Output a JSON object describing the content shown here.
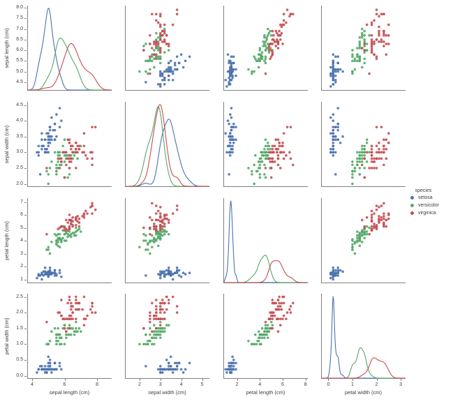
{
  "chart_data": {
    "type": "scatter",
    "subtype": "pairplot_scatter_matrix",
    "title": "",
    "diagonal": "kde",
    "grid": false,
    "variables": [
      "sepal length (cm)",
      "sepal width (cm)",
      "petal length (cm)",
      "petal width (cm)"
    ],
    "legend": {
      "title": "species",
      "position": "right-center"
    },
    "axes": {
      "xlims": [
        [
          3.7,
          8.9
        ],
        [
          1.3,
          5.35
        ],
        [
          0.8,
          8.2
        ],
        [
          -0.3,
          3.2
        ]
      ],
      "ylims": [
        [
          4.1,
          8.1
        ],
        [
          1.9,
          4.6
        ],
        [
          0.7,
          7.3
        ],
        [
          -0.1,
          2.6
        ]
      ],
      "xticks": [
        [
          4,
          6,
          8
        ],
        [
          2,
          3,
          4,
          5
        ],
        [
          2,
          4,
          6,
          8
        ],
        [
          0,
          1,
          2,
          3
        ]
      ],
      "xticklabels": [
        [
          "4",
          "6",
          "8"
        ],
        [
          "2",
          "3",
          "4",
          "5"
        ],
        [
          "2",
          "4",
          "6",
          "8"
        ],
        [
          "0",
          "1",
          "2",
          "3"
        ]
      ],
      "yticks": [
        [
          4.5,
          5.0,
          5.5,
          6.0,
          6.5,
          7.0,
          7.5,
          8.0
        ],
        [
          2.0,
          2.5,
          3.0,
          3.5,
          4.0,
          4.5
        ],
        [
          1,
          2,
          3,
          4,
          5,
          6,
          7
        ],
        [
          0.0,
          0.5,
          1.0,
          1.5,
          2.0,
          2.5
        ]
      ],
      "yticklabels": [
        [
          "4.5",
          "5.0",
          "5.5",
          "6.0",
          "6.5",
          "7.0",
          "7.5",
          "8.0"
        ],
        [
          "2.0",
          "2.5",
          "3.0",
          "3.5",
          "4.0",
          "4.5"
        ],
        [
          "1",
          "2",
          "3",
          "4",
          "5",
          "6",
          "7"
        ],
        [
          "0.0",
          "0.5",
          "1.0",
          "1.5",
          "2.0",
          "2.5"
        ]
      ]
    },
    "style": {
      "spine_color": "#808080",
      "text_color": "#3d3d3d",
      "marker_radius": 1.8,
      "marker_opacity": 0.9,
      "kde_line_width": 1.1
    },
    "series": [
      {
        "name": "setosa",
        "color": "#4C72B0",
        "points": [
          [
            5.1,
            3.5,
            1.4,
            0.2
          ],
          [
            4.9,
            3.0,
            1.4,
            0.2
          ],
          [
            4.7,
            3.2,
            1.3,
            0.2
          ],
          [
            4.6,
            3.1,
            1.5,
            0.2
          ],
          [
            5.0,
            3.6,
            1.4,
            0.2
          ],
          [
            5.4,
            3.9,
            1.7,
            0.4
          ],
          [
            4.6,
            3.4,
            1.4,
            0.3
          ],
          [
            5.0,
            3.4,
            1.5,
            0.2
          ],
          [
            4.4,
            2.9,
            1.4,
            0.2
          ],
          [
            4.9,
            3.1,
            1.5,
            0.1
          ],
          [
            5.4,
            3.7,
            1.5,
            0.2
          ],
          [
            4.8,
            3.4,
            1.6,
            0.2
          ],
          [
            4.8,
            3.0,
            1.4,
            0.1
          ],
          [
            4.3,
            3.0,
            1.1,
            0.1
          ],
          [
            5.8,
            4.0,
            1.2,
            0.2
          ],
          [
            5.7,
            4.4,
            1.5,
            0.4
          ],
          [
            5.4,
            3.9,
            1.3,
            0.4
          ],
          [
            5.1,
            3.5,
            1.4,
            0.3
          ],
          [
            5.7,
            3.8,
            1.7,
            0.3
          ],
          [
            5.1,
            3.8,
            1.5,
            0.3
          ],
          [
            5.4,
            3.4,
            1.7,
            0.2
          ],
          [
            5.1,
            3.7,
            1.5,
            0.4
          ],
          [
            4.6,
            3.6,
            1.0,
            0.2
          ],
          [
            5.1,
            3.3,
            1.7,
            0.5
          ],
          [
            4.8,
            3.4,
            1.9,
            0.2
          ],
          [
            5.0,
            3.0,
            1.6,
            0.2
          ],
          [
            5.0,
            3.4,
            1.6,
            0.4
          ],
          [
            5.2,
            3.5,
            1.5,
            0.2
          ],
          [
            5.2,
            3.4,
            1.4,
            0.2
          ],
          [
            4.7,
            3.2,
            1.6,
            0.2
          ],
          [
            4.8,
            3.1,
            1.6,
            0.2
          ],
          [
            5.4,
            3.4,
            1.5,
            0.4
          ],
          [
            5.2,
            4.1,
            1.5,
            0.1
          ],
          [
            5.5,
            4.2,
            1.4,
            0.2
          ],
          [
            4.9,
            3.1,
            1.5,
            0.2
          ],
          [
            5.0,
            3.2,
            1.2,
            0.2
          ],
          [
            5.5,
            3.5,
            1.3,
            0.2
          ],
          [
            4.9,
            3.6,
            1.4,
            0.1
          ],
          [
            4.4,
            3.0,
            1.3,
            0.2
          ],
          [
            5.1,
            3.4,
            1.5,
            0.2
          ],
          [
            5.0,
            3.5,
            1.3,
            0.3
          ],
          [
            4.5,
            2.3,
            1.3,
            0.3
          ],
          [
            4.4,
            3.2,
            1.3,
            0.2
          ],
          [
            5.0,
            3.5,
            1.6,
            0.6
          ],
          [
            5.1,
            3.8,
            1.9,
            0.4
          ],
          [
            4.8,
            3.0,
            1.4,
            0.3
          ],
          [
            5.1,
            3.8,
            1.6,
            0.2
          ],
          [
            4.6,
            3.2,
            1.4,
            0.2
          ],
          [
            5.3,
            3.7,
            1.5,
            0.2
          ],
          [
            5.0,
            3.3,
            1.4,
            0.2
          ]
        ]
      },
      {
        "name": "versicolor",
        "color": "#55A868",
        "points": [
          [
            7.0,
            3.2,
            4.7,
            1.4
          ],
          [
            6.4,
            3.2,
            4.5,
            1.5
          ],
          [
            6.9,
            3.1,
            4.9,
            1.5
          ],
          [
            5.5,
            2.3,
            4.0,
            1.3
          ],
          [
            6.5,
            2.8,
            4.6,
            1.5
          ],
          [
            5.7,
            2.8,
            4.5,
            1.3
          ],
          [
            6.3,
            3.3,
            4.7,
            1.6
          ],
          [
            4.9,
            2.4,
            3.3,
            1.0
          ],
          [
            6.6,
            2.9,
            4.6,
            1.3
          ],
          [
            5.2,
            2.7,
            3.9,
            1.4
          ],
          [
            5.0,
            2.0,
            3.5,
            1.0
          ],
          [
            5.9,
            3.0,
            4.2,
            1.5
          ],
          [
            6.0,
            2.2,
            4.0,
            1.0
          ],
          [
            6.1,
            2.9,
            4.7,
            1.4
          ],
          [
            5.6,
            2.9,
            3.6,
            1.3
          ],
          [
            6.7,
            3.1,
            4.4,
            1.4
          ],
          [
            5.6,
            3.0,
            4.5,
            1.5
          ],
          [
            5.8,
            2.7,
            4.1,
            1.0
          ],
          [
            6.2,
            2.2,
            4.5,
            1.5
          ],
          [
            5.6,
            2.5,
            3.9,
            1.1
          ],
          [
            5.9,
            3.2,
            4.8,
            1.8
          ],
          [
            6.1,
            2.8,
            4.0,
            1.3
          ],
          [
            6.3,
            2.5,
            4.9,
            1.5
          ],
          [
            6.1,
            2.8,
            4.7,
            1.2
          ],
          [
            6.4,
            2.9,
            4.3,
            1.3
          ],
          [
            6.6,
            3.0,
            4.4,
            1.4
          ],
          [
            6.8,
            2.8,
            4.8,
            1.4
          ],
          [
            6.7,
            3.0,
            5.0,
            1.7
          ],
          [
            6.0,
            2.9,
            4.5,
            1.5
          ],
          [
            5.7,
            2.6,
            3.5,
            1.0
          ],
          [
            5.5,
            2.4,
            3.8,
            1.1
          ],
          [
            5.5,
            2.4,
            3.7,
            1.0
          ],
          [
            5.8,
            2.7,
            3.9,
            1.2
          ],
          [
            6.0,
            2.7,
            5.1,
            1.6
          ],
          [
            5.4,
            3.0,
            4.5,
            1.5
          ],
          [
            6.0,
            3.4,
            4.5,
            1.6
          ],
          [
            6.7,
            3.1,
            4.7,
            1.5
          ],
          [
            6.3,
            2.3,
            4.4,
            1.3
          ],
          [
            5.6,
            3.0,
            4.1,
            1.3
          ],
          [
            5.5,
            2.5,
            4.0,
            1.3
          ],
          [
            5.5,
            2.6,
            4.4,
            1.2
          ],
          [
            6.1,
            3.0,
            4.6,
            1.4
          ],
          [
            5.8,
            2.6,
            4.0,
            1.2
          ],
          [
            5.0,
            2.3,
            3.3,
            1.0
          ],
          [
            5.6,
            2.7,
            4.2,
            1.3
          ],
          [
            5.7,
            3.0,
            4.2,
            1.2
          ],
          [
            5.7,
            2.9,
            4.2,
            1.3
          ],
          [
            6.2,
            2.9,
            4.3,
            1.3
          ],
          [
            5.1,
            2.5,
            3.0,
            1.1
          ],
          [
            5.7,
            2.8,
            4.1,
            1.3
          ]
        ]
      },
      {
        "name": "virginica",
        "color": "#C44E52",
        "points": [
          [
            6.3,
            3.3,
            6.0,
            2.5
          ],
          [
            5.8,
            2.7,
            5.1,
            1.9
          ],
          [
            7.1,
            3.0,
            5.9,
            2.1
          ],
          [
            6.3,
            2.9,
            5.6,
            1.8
          ],
          [
            6.5,
            3.0,
            5.8,
            2.2
          ],
          [
            7.6,
            3.0,
            6.6,
            2.1
          ],
          [
            4.9,
            2.5,
            4.5,
            1.7
          ],
          [
            7.3,
            2.9,
            6.3,
            1.8
          ],
          [
            6.7,
            2.5,
            5.8,
            1.8
          ],
          [
            7.2,
            3.6,
            6.1,
            2.5
          ],
          [
            6.5,
            3.2,
            5.1,
            2.0
          ],
          [
            6.4,
            2.7,
            5.3,
            1.9
          ],
          [
            6.8,
            3.0,
            5.5,
            2.1
          ],
          [
            5.7,
            2.5,
            5.0,
            2.0
          ],
          [
            5.8,
            2.8,
            5.1,
            2.4
          ],
          [
            6.4,
            3.2,
            5.3,
            2.3
          ],
          [
            6.5,
            3.0,
            5.5,
            1.8
          ],
          [
            7.7,
            3.8,
            6.7,
            2.2
          ],
          [
            7.7,
            2.6,
            6.9,
            2.3
          ],
          [
            6.0,
            2.2,
            5.0,
            1.5
          ],
          [
            6.9,
            3.2,
            5.7,
            2.3
          ],
          [
            5.6,
            2.8,
            4.9,
            2.0
          ],
          [
            7.7,
            2.8,
            6.7,
            2.0
          ],
          [
            6.3,
            2.7,
            4.9,
            1.8
          ],
          [
            6.7,
            3.3,
            5.7,
            2.1
          ],
          [
            7.2,
            3.2,
            6.0,
            1.8
          ],
          [
            6.2,
            2.8,
            4.8,
            1.8
          ],
          [
            6.1,
            3.0,
            4.9,
            1.8
          ],
          [
            6.4,
            2.8,
            5.6,
            2.1
          ],
          [
            7.2,
            3.0,
            5.8,
            1.6
          ],
          [
            7.4,
            2.8,
            6.1,
            1.9
          ],
          [
            7.9,
            3.8,
            6.4,
            2.0
          ],
          [
            6.4,
            2.8,
            5.6,
            2.2
          ],
          [
            6.3,
            2.8,
            5.1,
            1.5
          ],
          [
            6.1,
            2.6,
            5.6,
            1.4
          ],
          [
            7.7,
            3.0,
            6.1,
            2.3
          ],
          [
            6.3,
            3.4,
            5.6,
            2.4
          ],
          [
            6.4,
            3.1,
            5.5,
            1.8
          ],
          [
            6.0,
            3.0,
            4.8,
            1.8
          ],
          [
            6.9,
            3.1,
            5.4,
            2.1
          ],
          [
            6.7,
            3.1,
            5.6,
            2.4
          ],
          [
            6.9,
            3.1,
            5.1,
            2.3
          ],
          [
            5.8,
            2.7,
            5.1,
            1.9
          ],
          [
            6.8,
            3.2,
            5.9,
            2.3
          ],
          [
            6.7,
            3.3,
            5.7,
            2.5
          ],
          [
            6.7,
            3.0,
            5.2,
            2.3
          ],
          [
            6.3,
            2.5,
            5.0,
            1.9
          ],
          [
            6.5,
            3.0,
            5.2,
            2.0
          ],
          [
            6.2,
            3.4,
            5.4,
            2.3
          ],
          [
            5.9,
            3.0,
            5.1,
            1.8
          ]
        ]
      }
    ]
  }
}
